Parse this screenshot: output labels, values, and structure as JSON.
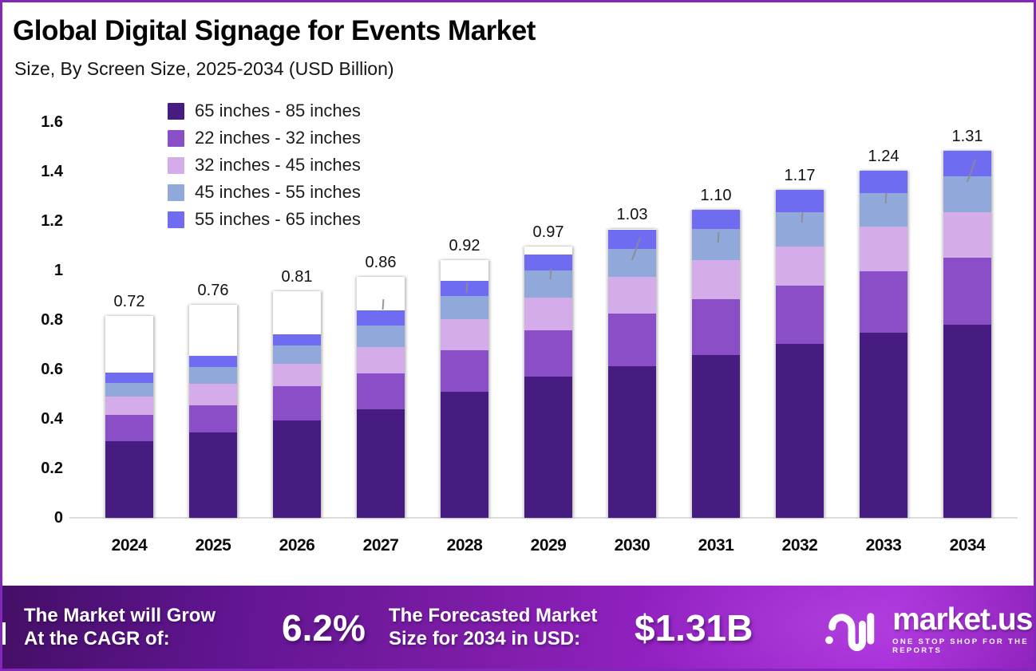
{
  "page": {
    "title": "Global Digital Signage for Events Market",
    "subtitle": "Size, By Screen Size, 2025-2034 (USD Billion)",
    "border_color": "#8326ba"
  },
  "chart_data": {
    "type": "bar",
    "stacked": true,
    "title": "Global Digital Signage for Events Market",
    "subtitle": "Size, By Screen Size, 2025-2034 (USD Billion)",
    "unit": "USD Billion",
    "categories": [
      "2024",
      "2025",
      "2026",
      "2027",
      "2028",
      "2029",
      "2030",
      "2031",
      "2032",
      "2033",
      "2034"
    ],
    "totals": [
      "0.72",
      "0.76",
      "0.81",
      "0.86",
      "0.92",
      "0.97",
      "1.03",
      "1.10",
      "1.17",
      "1.24",
      "1.31"
    ],
    "series": [
      {
        "name": "65 inches - 85 inches",
        "color": "#471c80",
        "values": [
          0.38,
          0.4,
          0.43,
          0.45,
          0.49,
          0.52,
          0.54,
          0.58,
          0.62,
          0.66,
          0.69
        ]
      },
      {
        "name": "22 inches - 32 inches",
        "color": "#8a4ec7",
        "values": [
          0.13,
          0.13,
          0.15,
          0.15,
          0.16,
          0.17,
          0.19,
          0.2,
          0.21,
          0.22,
          0.24
        ]
      },
      {
        "name": "32 inches - 45 inches",
        "color": "#d3ace9",
        "values": [
          0.09,
          0.1,
          0.1,
          0.11,
          0.12,
          0.12,
          0.13,
          0.14,
          0.14,
          0.16,
          0.16
        ]
      },
      {
        "name": "45 inches - 55 inches",
        "color": "#90a9da",
        "values": [
          0.07,
          0.08,
          0.08,
          0.09,
          0.09,
          0.1,
          0.1,
          0.11,
          0.12,
          0.12,
          0.13
        ]
      },
      {
        "name": "55 inches - 65 inches",
        "color": "#6f6cf2",
        "values": [
          0.05,
          0.05,
          0.05,
          0.06,
          0.06,
          0.06,
          0.07,
          0.07,
          0.08,
          0.08,
          0.09
        ]
      }
    ],
    "ylim": [
      0,
      1.6
    ],
    "yticks": [
      "0",
      "0.2",
      "0.4",
      "0.6",
      "0.8",
      "1",
      "1.2",
      "1.4",
      "1.6"
    ],
    "grid": false,
    "legend_position": "top-left"
  },
  "footer": {
    "cagr_label_line1": "The Market will Grow",
    "cagr_label_line2": "At the CAGR of:",
    "cagr_value": "6.2%",
    "forecast_label_line1": "The Forecasted Market",
    "forecast_label_line2": "Size for 2034 in USD:",
    "forecast_value": "$1.31B",
    "brand_name": "market.us",
    "brand_tagline": "ONE STOP SHOP FOR THE REPORTS",
    "icons": {
      "brand_mark": "market-us-logo-mark"
    },
    "gradient_left": "#440f66",
    "gradient_right": "#a829da"
  }
}
